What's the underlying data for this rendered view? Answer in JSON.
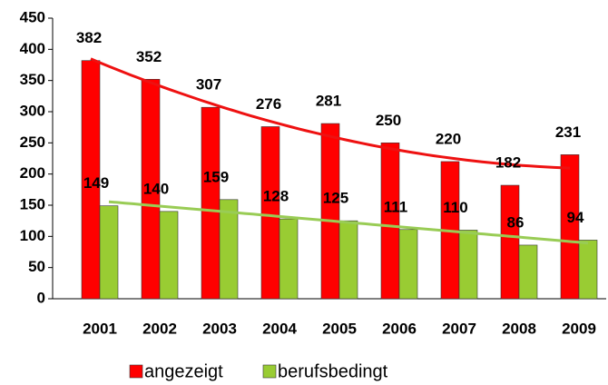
{
  "chart_data": {
    "type": "bar",
    "categories": [
      "2001",
      "2002",
      "2003",
      "2004",
      "2005",
      "2006",
      "2007",
      "2008",
      "2009"
    ],
    "series": [
      {
        "name": "angezeigt",
        "color": "#ff0000",
        "values": [
          382,
          352,
          307,
          276,
          281,
          250,
          220,
          182,
          231
        ],
        "trend_degree": 2,
        "trend_color": "#ee1111"
      },
      {
        "name": "berufsbedingt",
        "color": "#99cc33",
        "values": [
          149,
          140,
          159,
          128,
          125,
          111,
          110,
          86,
          94
        ],
        "trend_degree": 1,
        "trend_color": "#99cc55"
      }
    ],
    "ylim": [
      0,
      450
    ],
    "yticks": [
      0,
      50,
      100,
      150,
      200,
      250,
      300,
      350,
      400,
      450
    ],
    "legend": "bottom"
  }
}
